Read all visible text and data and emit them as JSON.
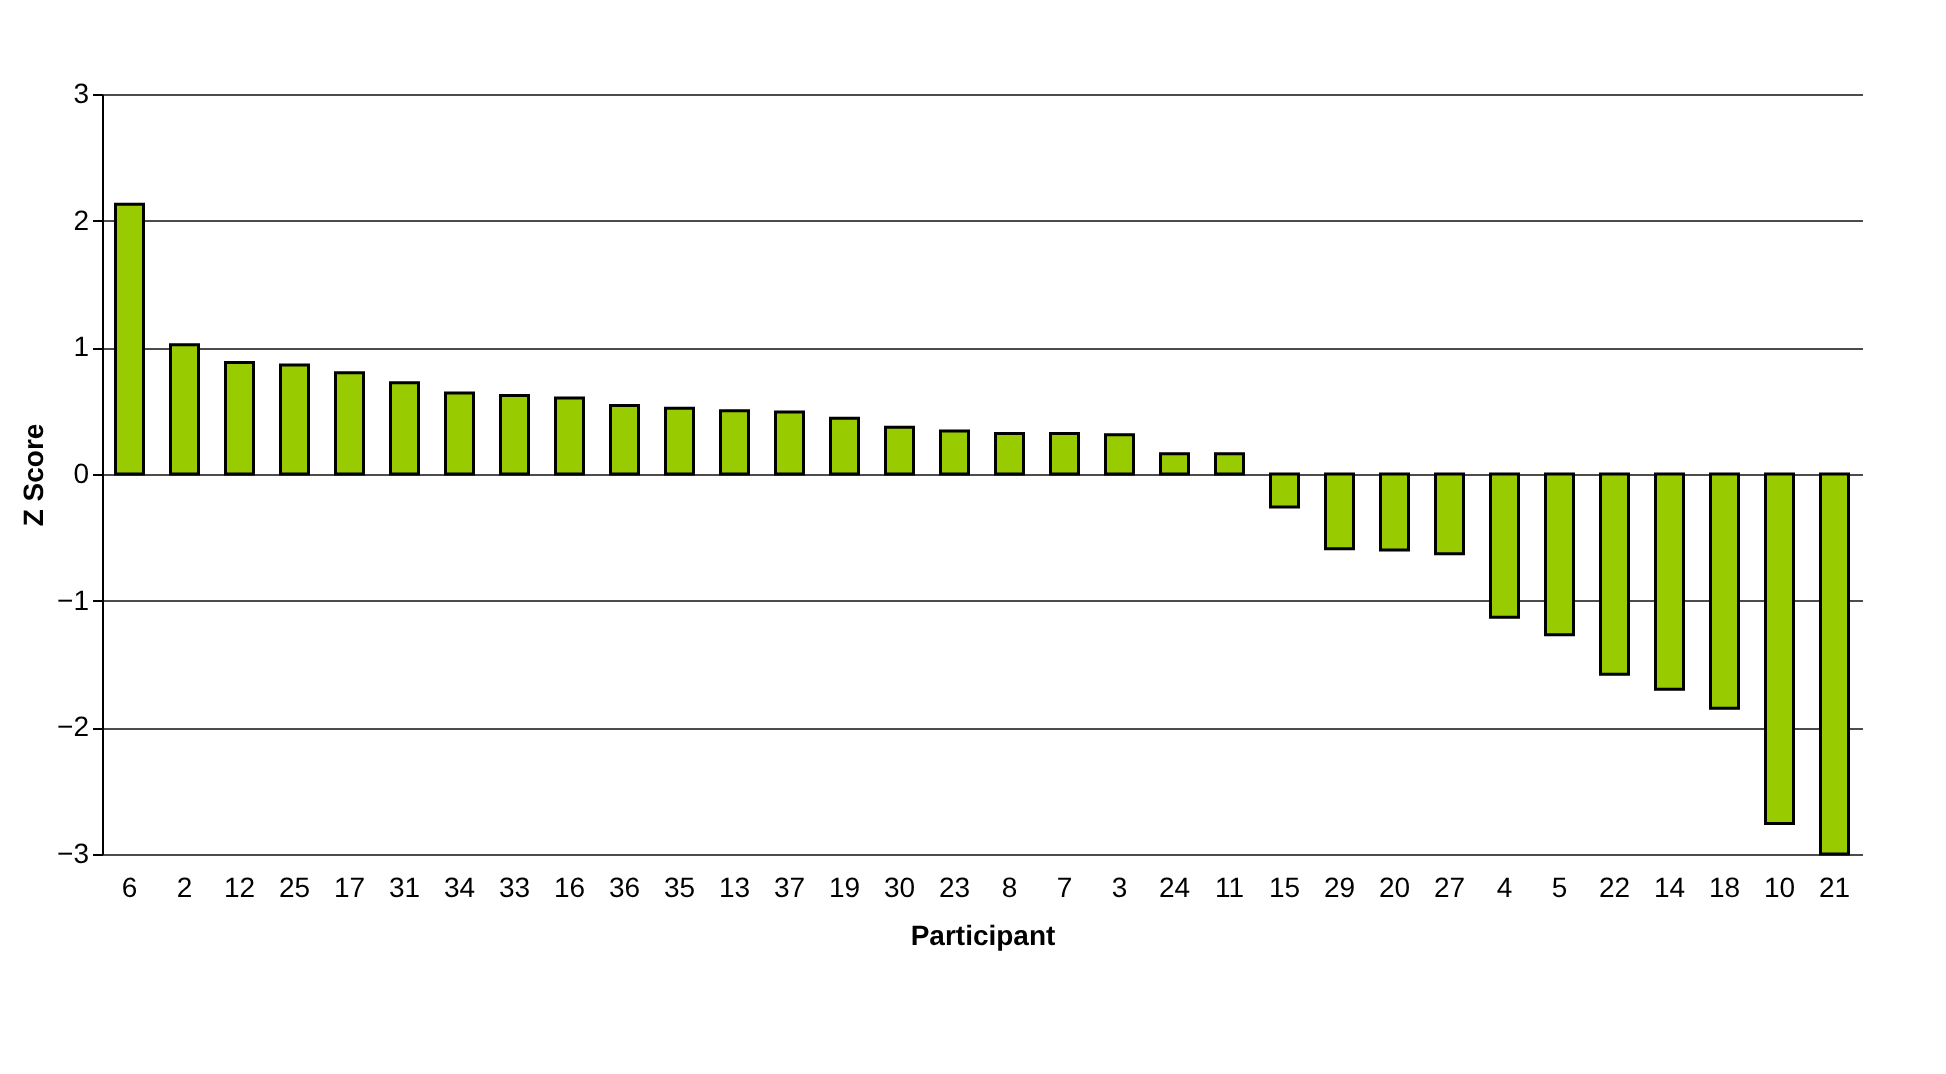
{
  "chart_data": {
    "type": "bar",
    "xlabel": "Participant",
    "ylabel": "Z Score",
    "categories": [
      "6",
      "2",
      "12",
      "25",
      "17",
      "31",
      "34",
      "33",
      "16",
      "36",
      "35",
      "13",
      "37",
      "19",
      "30",
      "23",
      "8",
      "7",
      "3",
      "24",
      "11",
      "15",
      "29",
      "20",
      "27",
      "4",
      "5",
      "22",
      "14",
      "18",
      "10",
      "21"
    ],
    "values": [
      2.13,
      1.02,
      0.88,
      0.86,
      0.8,
      0.72,
      0.64,
      0.62,
      0.6,
      0.54,
      0.52,
      0.5,
      0.49,
      0.44,
      0.37,
      0.34,
      0.32,
      0.32,
      0.31,
      0.16,
      0.16,
      -0.26,
      -0.59,
      -0.6,
      -0.63,
      -1.13,
      -1.27,
      -1.58,
      -1.7,
      -1.85,
      -2.76,
      -3
    ],
    "color": "#99cc00",
    "ylim": [
      -3,
      3
    ],
    "yticks": [
      -3,
      -2,
      -1,
      0,
      1,
      2,
      3
    ],
    "grid": "y"
  }
}
